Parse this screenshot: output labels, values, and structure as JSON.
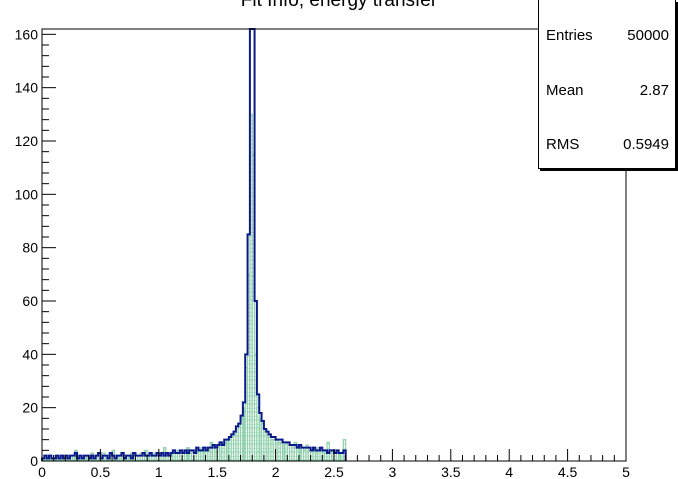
{
  "title": "Fit Info, energy transfer",
  "stats": {
    "entries_label": "Entries",
    "entries_value": "50000",
    "mean_label": "Mean",
    "mean_value": "2.87",
    "rms_label": "RMS",
    "rms_value": "0.5949"
  },
  "colors": {
    "primary": "#0a1a8a",
    "secondary": "#8fd0a8",
    "hatch": "#7fc8b4"
  },
  "chart_data": {
    "type": "histogram",
    "title": "Fit Info, energy transfer",
    "xlabel": "",
    "ylabel": "",
    "xlim": [
      0,
      5
    ],
    "ylim": [
      0,
      162
    ],
    "xticks": [
      "0",
      "0.5",
      "1",
      "1.5",
      "2",
      "2.5",
      "3",
      "3.5",
      "4",
      "4.5",
      "5"
    ],
    "yticks": [
      "0",
      "20",
      "40",
      "60",
      "80",
      "100",
      "120",
      "140",
      "160"
    ],
    "bin_width": 0.02,
    "series": [
      {
        "name": "",
        "style": "dark blue outline",
        "x_start": 0.0,
        "counts": [
          1,
          2,
          1,
          2,
          1,
          1,
          2,
          1,
          2,
          1,
          2,
          1,
          2,
          2,
          3,
          1,
          2,
          1,
          2,
          2,
          1,
          2,
          1,
          2,
          3,
          1,
          2,
          2,
          1,
          3,
          2,
          1,
          2,
          2,
          3,
          1,
          2,
          2,
          1,
          3,
          2,
          2,
          2,
          3,
          2,
          2,
          3,
          2,
          2,
          3,
          2,
          3,
          2,
          3,
          2,
          3,
          4,
          3,
          3,
          4,
          3,
          4,
          3,
          4,
          4,
          3,
          5,
          4,
          4,
          5,
          4,
          5,
          5,
          6,
          5,
          6,
          7,
          6,
          8,
          8,
          9,
          10,
          11,
          13,
          14,
          17,
          22,
          40,
          85,
          162,
          162,
          60,
          25,
          18,
          15,
          12,
          11,
          10,
          9,
          9,
          8,
          8,
          8,
          7,
          7,
          7,
          6,
          6,
          6,
          5,
          6,
          5,
          5,
          5,
          5,
          4,
          5,
          4,
          4,
          5,
          4,
          4,
          3,
          4,
          4,
          3,
          4,
          3,
          3,
          4
        ]
      },
      {
        "name": "",
        "style": "green filled, hatched",
        "x_start": 0.0,
        "counts": [
          1,
          1,
          2,
          1,
          1,
          2,
          1,
          1,
          1,
          2,
          1,
          1,
          2,
          1,
          4,
          1,
          2,
          1,
          1,
          2,
          1,
          3,
          1,
          2,
          2,
          1,
          3,
          1,
          2,
          2,
          4,
          1,
          2,
          1,
          2,
          2,
          2,
          1,
          3,
          2,
          2,
          2,
          3,
          2,
          4,
          2,
          2,
          2,
          3,
          2,
          3,
          2,
          5,
          2,
          3,
          3,
          3,
          3,
          4,
          3,
          3,
          3,
          5,
          3,
          4,
          4,
          4,
          4,
          5,
          4,
          5,
          4,
          7,
          5,
          6,
          5,
          6,
          6,
          7,
          8,
          8,
          9,
          10,
          12,
          13,
          16,
          20,
          35,
          70,
          130,
          115,
          40,
          20,
          16,
          14,
          11,
          10,
          9,
          8,
          8,
          8,
          7,
          7,
          6,
          7,
          6,
          6,
          5,
          7,
          5,
          5,
          5,
          4,
          6,
          4,
          4,
          4,
          4,
          5,
          4,
          4,
          3,
          7,
          3,
          4,
          3,
          3,
          3,
          3,
          8
        ]
      }
    ]
  }
}
